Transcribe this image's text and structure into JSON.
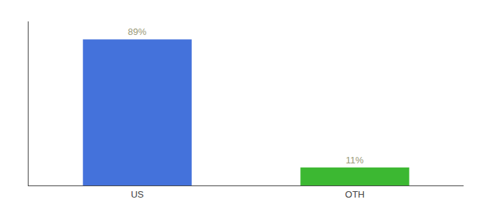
{
  "chart_data": {
    "type": "bar",
    "categories": [
      "US",
      "OTH"
    ],
    "values": [
      89,
      11
    ],
    "value_labels": [
      "89%",
      "11%"
    ],
    "colors": [
      "#4472db",
      "#3cb832"
    ],
    "ylim": [
      0,
      100
    ],
    "data_labels": true,
    "grid": false,
    "tick_labels": "x"
  }
}
